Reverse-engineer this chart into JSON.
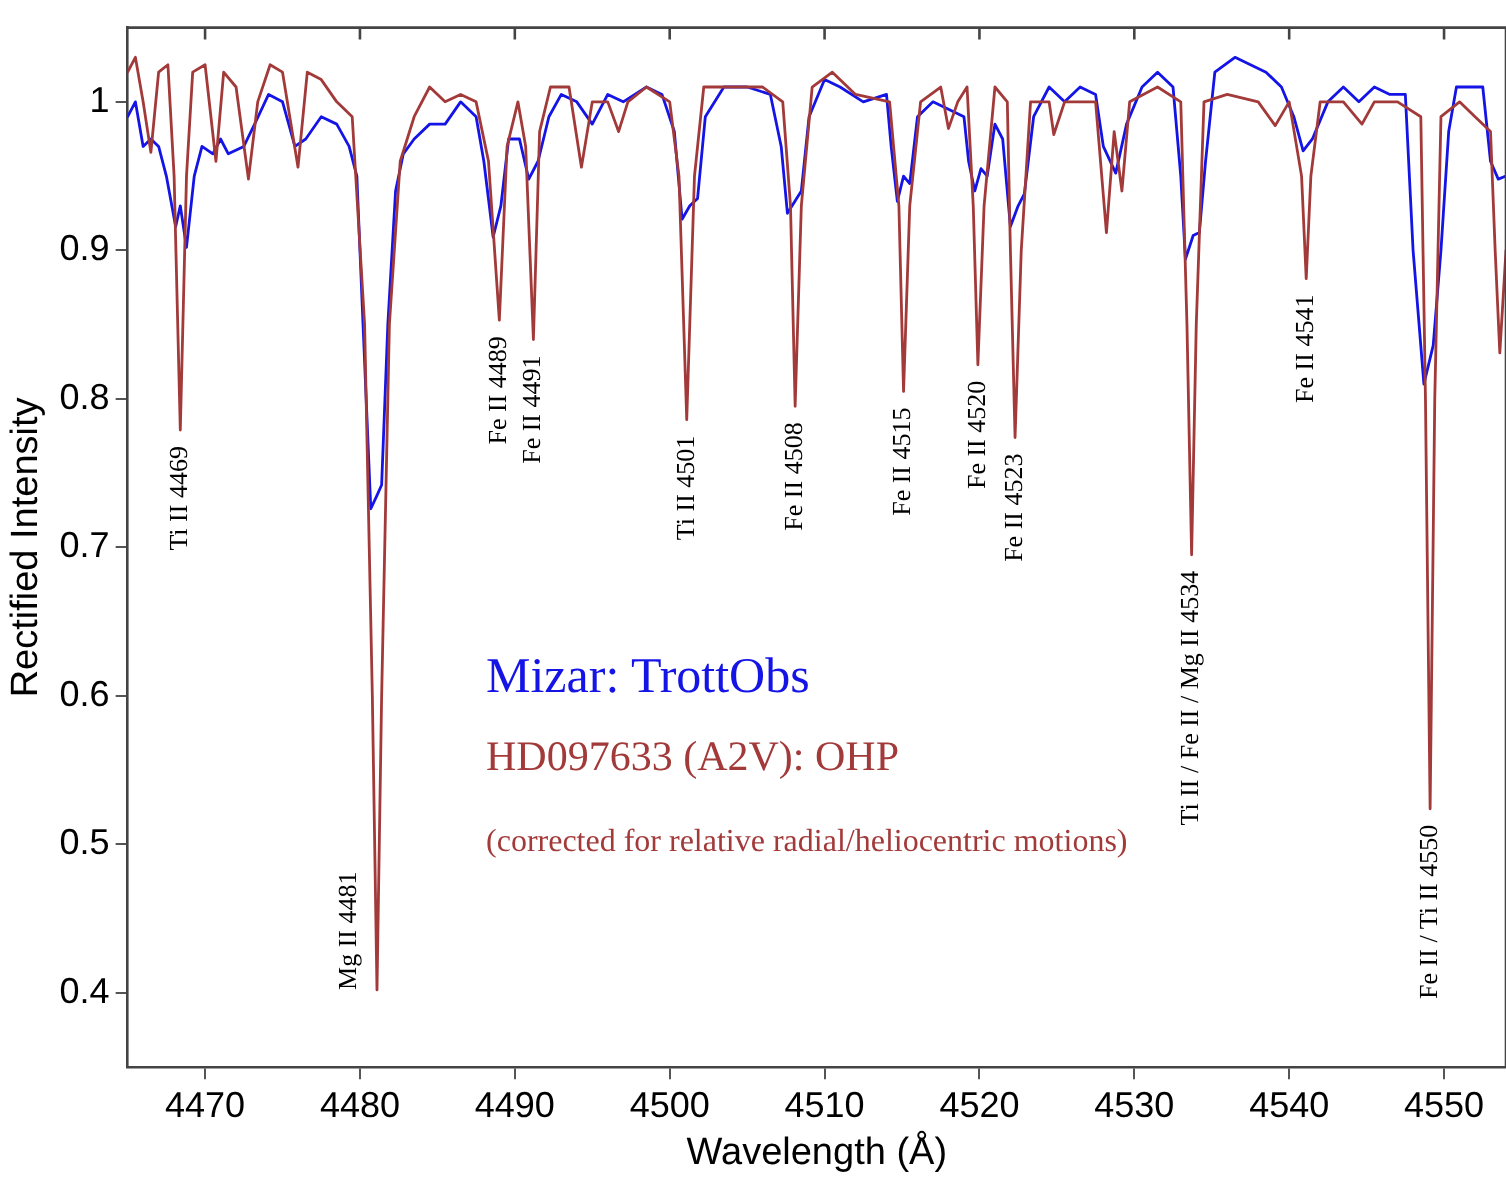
{
  "chart_data": {
    "type": "line",
    "xlabel": "Wavelength (Å)",
    "ylabel": "Rectified Intensity",
    "xlim": [
      4465,
      4554
    ],
    "ylim": [
      0.35,
      1.05
    ],
    "xticks": [
      4470,
      4480,
      4490,
      4500,
      4510,
      4520,
      4530,
      4540,
      4550
    ],
    "yticks": [
      0.4,
      0.5,
      0.6,
      0.7,
      0.8,
      0.9,
      1
    ],
    "grid": false,
    "legend": "bottom",
    "marker": "none",
    "line_style": "solid",
    "series": [
      {
        "name": "HD097633 (A2V): OHP",
        "color": "#a33a3a",
        "x": [
          4465,
          4465.5,
          4466,
          4466.5,
          4467,
          4467.6,
          4468,
          4468.4,
          4468.8,
          4469.2,
          4470,
          4470.7,
          4471.2,
          4472,
          4472.8,
          4473.4,
          4474.2,
          4475,
          4476,
          4476.6,
          4477.5,
          4478.5,
          4479.5,
          4480.3,
          4480.8,
          4481.1,
          4481.4,
          4481.9,
          4482.6,
          4483.5,
          4484.5,
          4485.5,
          4486.5,
          4487.5,
          4488.3,
          4489,
          4489.5,
          4490.2,
          4490.7,
          4491.2,
          4491.6,
          4492.3,
          4493.5,
          4494.3,
          4495,
          4496,
          4496.7,
          4497.3,
          4498.5,
          4500,
          4500.6,
          4501.1,
          4501.6,
          4502.2,
          4504,
          4506,
          4507.3,
          4507.8,
          4508.1,
          4508.5,
          4509.2,
          4510.5,
          4512,
          4514.2,
          4514.8,
          4515.1,
          4515.5,
          4516.2,
          4517.5,
          4518,
          4518.6,
          4519.2,
          4519.6,
          4519.9,
          4520.3,
          4521,
          4521.8,
          4522,
          4522.3,
          4522.7,
          4523.3,
          4524.5,
          4524.8,
          4525.5,
          4527.5,
          4528.2,
          4528.7,
          4529.2,
          4529.7,
          4531.5,
          4533,
          4533.4,
          4533.7,
          4534,
          4534.5,
          4536,
          4538,
          4539.1,
          4540,
          4540.8,
          4541.1,
          4541.4,
          4542,
          4543.5,
          4544.7,
          4545.5,
          4547,
          4548.5,
          4548.8,
          4549.1,
          4549.4,
          4549.8,
          4551,
          4552,
          4553,
          4553.3,
          4553.6,
          4554
        ],
        "values": [
          1.02,
          1.03,
          1.0,
          0.966,
          1.02,
          1.025,
          0.95,
          0.779,
          0.95,
          1.02,
          1.025,
          0.96,
          1.02,
          1.01,
          0.948,
          1.0,
          1.025,
          1.02,
          0.956,
          1.02,
          1.015,
          1.0,
          0.99,
          0.85,
          0.6,
          0.402,
          0.6,
          0.85,
          0.96,
          0.99,
          1.01,
          1.0,
          1.005,
          1.0,
          0.96,
          0.853,
          0.97,
          1.0,
          0.97,
          0.84,
          0.98,
          1.01,
          1.01,
          0.956,
          1.0,
          1.0,
          0.98,
          1.0,
          1.01,
          1.0,
          0.95,
          0.786,
          0.95,
          1.01,
          1.01,
          1.01,
          1.0,
          0.93,
          0.795,
          0.93,
          1.01,
          1.02,
          1.005,
          1.0,
          0.93,
          0.805,
          0.93,
          1.0,
          1.01,
          0.982,
          1.0,
          1.01,
          0.93,
          0.823,
          0.93,
          1.01,
          1.0,
          0.9,
          0.774,
          0.9,
          1.0,
          1.0,
          0.978,
          1.0,
          1.0,
          0.912,
          0.98,
          0.94,
          1.0,
          1.01,
          1.0,
          0.85,
          0.695,
          0.85,
          1.0,
          1.005,
          1.0,
          0.984,
          1.0,
          0.95,
          0.881,
          0.95,
          1.0,
          1.0,
          0.985,
          1.0,
          1.0,
          0.99,
          0.8,
          0.524,
          0.8,
          0.99,
          1.0,
          0.99,
          0.98,
          0.9,
          0.831,
          0.9
        ]
      },
      {
        "name": "Mizar: TrottObs",
        "color": "#1414e6",
        "x": [
          4465,
          4465.5,
          4466,
          4466.5,
          4467,
          4467.5,
          4468.1,
          4468.4,
          4468.8,
          4469.3,
          4469.8,
          4470.5,
          4471,
          4471.5,
          4472.5,
          4473.2,
          4474.1,
          4475,
          4475.8,
          4476.5,
          4477.5,
          4478.5,
          4479.3,
          4479.8,
          4480.2,
          4480.7,
          4481.1,
          4481.4,
          4481.8,
          4482.3,
          4482.8,
          4483.5,
          4484.5,
          4485.5,
          4486.5,
          4487.5,
          4488,
          4488.6,
          4489.1,
          4489.6,
          4490.3,
          4490.9,
          4491.5,
          4492.2,
          4493,
          4494,
          4495,
          4496,
          4497,
          4498.5,
          4499.5,
          4500.3,
          4500.8,
          4501.3,
          4501.8,
          4502.3,
          4503.5,
          4505,
          4506.5,
          4507.2,
          4507.6,
          4508.5,
          4509,
          4510,
          4511,
          4512.5,
          4514,
          4514.3,
          4514.7,
          4515.1,
          4515.5,
          4516,
          4517,
          4518,
          4519,
          4519.3,
          4519.7,
          4520.1,
          4520.5,
          4521,
          4521.5,
          4522,
          4522.5,
          4522.9,
          4523.5,
          4524.5,
          4525.5,
          4526.5,
          4527.5,
          4528,
          4528.8,
          4529.5,
          4530.5,
          4531.5,
          4532.5,
          4533,
          4533.3,
          4533.8,
          4534.2,
          4534.6,
          4535.2,
          4536.5,
          4537.5,
          4538.5,
          4539.5,
          4540.3,
          4540.9,
          4541.5,
          4542.5,
          4543.5,
          4544.5,
          4545.5,
          4546.5,
          4547.5,
          4548,
          4548.7,
          4549.3,
          4549.8,
          4550.3,
          4550.8,
          4551.5,
          4552.5,
          4553,
          4553.5,
          4554
        ],
        "values": [
          0.99,
          1.0,
          0.97,
          0.975,
          0.97,
          0.95,
          0.916,
          0.93,
          0.902,
          0.95,
          0.97,
          0.965,
          0.975,
          0.965,
          0.97,
          0.985,
          1.005,
          1.0,
          0.97,
          0.975,
          0.99,
          0.985,
          0.97,
          0.95,
          0.85,
          0.726,
          0.735,
          0.742,
          0.85,
          0.94,
          0.965,
          0.975,
          0.985,
          0.985,
          1.0,
          0.99,
          0.96,
          0.909,
          0.93,
          0.975,
          0.975,
          0.948,
          0.96,
          0.99,
          1.005,
          1.0,
          0.985,
          1.005,
          1.0,
          1.01,
          1.005,
          0.98,
          0.921,
          0.93,
          0.935,
          0.99,
          1.01,
          1.01,
          1.005,
          0.97,
          0.925,
          0.94,
          0.99,
          1.015,
          1.01,
          1.0,
          1.005,
          0.97,
          0.933,
          0.95,
          0.945,
          0.99,
          1.0,
          0.995,
          0.99,
          0.96,
          0.94,
          0.955,
          0.95,
          0.985,
          0.975,
          0.916,
          0.93,
          0.938,
          0.99,
          1.01,
          1.0,
          1.01,
          1.005,
          0.97,
          0.952,
          0.985,
          1.01,
          1.02,
          1.01,
          0.95,
          0.894,
          0.91,
          0.912,
          0.96,
          1.02,
          1.03,
          1.025,
          1.02,
          1.01,
          0.99,
          0.967,
          0.975,
          1.0,
          1.01,
          1.0,
          1.01,
          1.005,
          1.005,
          0.9,
          0.81,
          0.836,
          0.9,
          0.98,
          1.01,
          1.01,
          1.01,
          0.96,
          0.948,
          0.95
        ]
      }
    ],
    "annotations": [
      {
        "text": "Ti II 4469",
        "x": 4468.4,
        "y": 0.779
      },
      {
        "text": "Mg II 4481",
        "x": 4481.1,
        "y": 0.402
      },
      {
        "text": "Fe II 4489",
        "x": 4489,
        "y": 0.853
      },
      {
        "text": "Fe II 4491",
        "x": 4491.2,
        "y": 0.84
      },
      {
        "text": "Ti II 4501",
        "x": 4501.1,
        "y": 0.786
      },
      {
        "text": "Fe II 4508",
        "x": 4508.1,
        "y": 0.795
      },
      {
        "text": "Fe II 4515",
        "x": 4515.1,
        "y": 0.805
      },
      {
        "text": "Fe II 4520",
        "x": 4519.9,
        "y": 0.823
      },
      {
        "text": "Fe II 4523",
        "x": 4522.3,
        "y": 0.774
      },
      {
        "text": "Ti II / Fe II / Mg II 4534",
        "x": 4533.7,
        "y": 0.695
      },
      {
        "text": "Fe II 4541",
        "x": 4541.1,
        "y": 0.881
      },
      {
        "text": "Fe II / Ti II 4550",
        "x": 4549.1,
        "y": 0.524
      },
      "(corrected for relative radial/heliocentric motions)"
    ]
  }
}
